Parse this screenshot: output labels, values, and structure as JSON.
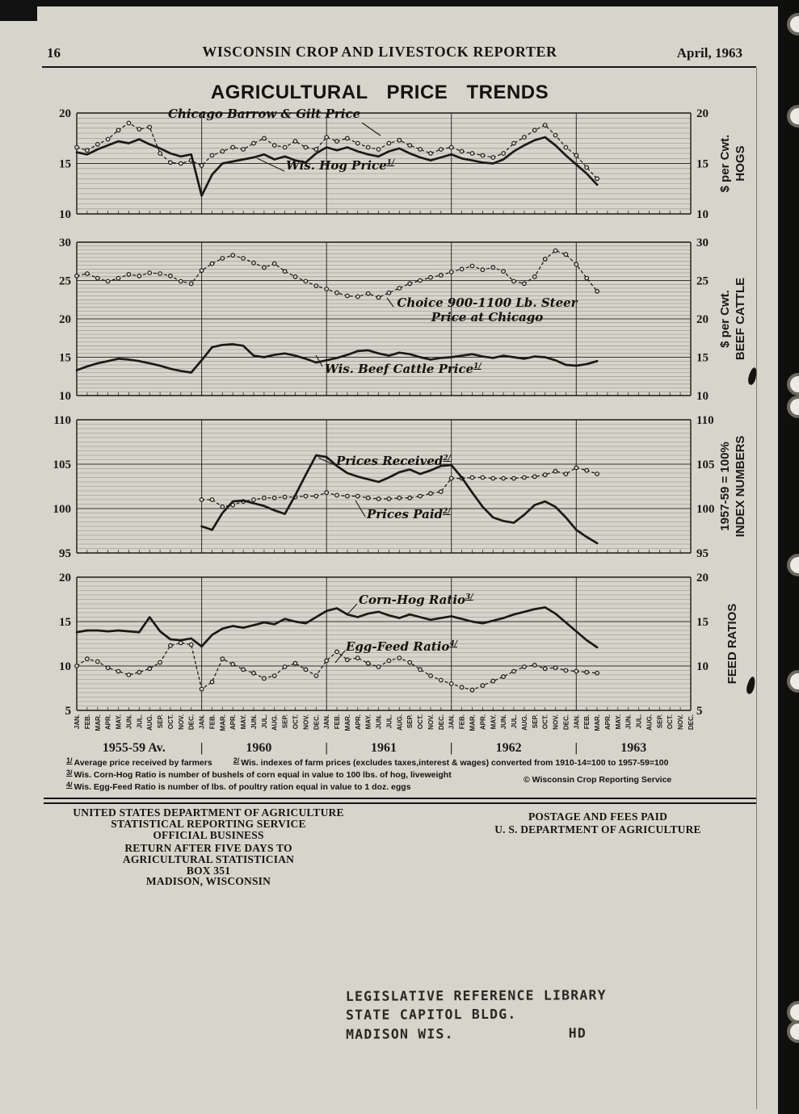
{
  "page": {
    "page_number": "16",
    "header_title": "WISCONSIN CROP AND LIVESTOCK REPORTER",
    "header_date": "April, 1963"
  },
  "chart": {
    "title": "AGRICULTURAL PRICE TRENDS",
    "months": [
      "JAN.",
      "FEB.",
      "MAR.",
      "APR.",
      "MAY.",
      "JUN.",
      "JUL.",
      "AUG.",
      "SEP.",
      "OCT.",
      "NOV.",
      "DEC."
    ],
    "groups": [
      "1955-59 Av.",
      "1960",
      "1961",
      "1962",
      "1963"
    ],
    "group_separator": "|"
  },
  "annotations": {
    "chicago": "Chicago Barrow & Gilt Price",
    "wis_hog": "Wis. Hog Price",
    "wis_hog_sup": "1/",
    "choice_line1": "Choice 900-1100 Lb. Steer",
    "choice_line2": "Price at Chicago",
    "wis_beef": "Wis. Beef Cattle Price",
    "wis_beef_sup": "1/",
    "received": "Prices Received",
    "received_sup": "2/",
    "paid": "Prices Paid",
    "paid_sup": "2/",
    "corn_hog": "Corn-Hog Ratio",
    "corn_hog_sup": "3/",
    "egg_feed": "Egg-Feed Ratio",
    "egg_feed_sup": "4/"
  },
  "chart_data": [
    {
      "id": "hogs",
      "type": "line",
      "ylim": [
        10,
        20
      ],
      "yticks": [
        10,
        15,
        20
      ],
      "axis_title": [
        "HOGS",
        "$ per Cwt."
      ],
      "series": [
        {
          "name": "Chicago Barrow & Gilt Price",
          "style": "dotted-circles",
          "values": [
            16.6,
            16.3,
            16.9,
            17.4,
            18.3,
            19.0,
            18.4,
            18.6,
            16.0,
            15.1,
            15.0,
            15.3,
            14.8,
            15.8,
            16.2,
            16.6,
            16.4,
            17.0,
            17.5,
            16.8,
            16.6,
            17.2,
            16.6,
            16.4,
            17.6,
            17.2,
            17.5,
            17.0,
            16.6,
            16.4,
            17.0,
            17.3,
            16.8,
            16.4,
            16.0,
            16.4,
            16.6,
            16.2,
            16.0,
            15.8,
            15.6,
            16.0,
            17.0,
            17.6,
            18.3,
            18.8,
            17.8,
            16.6,
            15.8,
            14.6,
            13.5,
            null,
            null,
            null,
            null,
            null,
            null,
            null,
            null,
            null
          ]
        },
        {
          "name": "Wis. Hog Price",
          "style": "solid",
          "values": [
            16.1,
            15.9,
            16.4,
            16.8,
            17.2,
            17.0,
            17.4,
            16.9,
            16.5,
            16.0,
            15.7,
            15.9,
            11.8,
            13.9,
            15.0,
            15.2,
            15.4,
            15.6,
            15.9,
            15.4,
            15.7,
            15.3,
            15.1,
            16.0,
            16.6,
            16.3,
            16.6,
            16.2,
            15.9,
            15.7,
            16.2,
            16.5,
            16.0,
            15.6,
            15.3,
            15.6,
            15.9,
            15.5,
            15.3,
            15.1,
            15.0,
            15.4,
            16.2,
            16.8,
            17.3,
            17.6,
            16.8,
            15.8,
            14.9,
            14.0,
            12.9,
            null,
            null,
            null,
            null,
            null,
            null,
            null,
            null,
            null
          ]
        }
      ]
    },
    {
      "id": "beef_cattle",
      "type": "line",
      "ylim": [
        10,
        30
      ],
      "yticks": [
        10,
        15,
        20,
        25,
        30
      ],
      "axis_title": [
        "BEEF CATTLE",
        "$ per Cwt."
      ],
      "series": [
        {
          "name": "Choice 900-1100 Lb. Steer Price at Chicago",
          "style": "dotted-circles",
          "values": [
            25.6,
            25.9,
            25.3,
            24.9,
            25.3,
            25.8,
            25.6,
            26.0,
            25.9,
            25.6,
            24.9,
            24.6,
            26.3,
            27.2,
            27.9,
            28.3,
            27.9,
            27.3,
            26.7,
            27.2,
            26.2,
            25.5,
            24.9,
            24.3,
            23.9,
            23.4,
            23.0,
            22.9,
            23.3,
            22.8,
            23.4,
            24.0,
            24.6,
            25.0,
            25.4,
            25.7,
            26.1,
            26.5,
            26.9,
            26.4,
            26.7,
            26.2,
            24.9,
            24.6,
            25.5,
            27.8,
            28.9,
            28.4,
            27.1,
            25.3,
            23.6,
            null,
            null,
            null,
            null,
            null,
            null,
            null,
            null,
            null
          ]
        },
        {
          "name": "Wis. Beef Cattle Price",
          "style": "solid",
          "values": [
            13.3,
            13.8,
            14.2,
            14.5,
            14.8,
            14.7,
            14.5,
            14.2,
            13.9,
            13.5,
            13.2,
            13.0,
            14.6,
            16.3,
            16.6,
            16.7,
            16.5,
            15.2,
            15.0,
            15.3,
            15.5,
            15.2,
            14.8,
            14.3,
            14.6,
            14.9,
            15.3,
            15.8,
            15.9,
            15.5,
            15.2,
            15.6,
            15.4,
            15.0,
            14.7,
            14.9,
            15.0,
            15.2,
            15.4,
            15.1,
            14.9,
            15.2,
            15.0,
            14.8,
            15.1,
            15.0,
            14.6,
            14.0,
            13.9,
            14.1,
            14.5,
            null,
            null,
            null,
            null,
            null,
            null,
            null,
            null,
            null
          ]
        }
      ]
    },
    {
      "id": "index_numbers",
      "type": "line",
      "ylim": [
        95,
        110
      ],
      "yticks": [
        95,
        100,
        105,
        110
      ],
      "axis_title": [
        "INDEX NUMBERS",
        "1957-59 = 100%"
      ],
      "series": [
        {
          "name": "Prices Paid",
          "style": "dotted-circles",
          "values": [
            null,
            null,
            null,
            null,
            null,
            null,
            null,
            null,
            null,
            null,
            null,
            null,
            101.0,
            101.0,
            100.2,
            100.4,
            100.8,
            101.0,
            101.2,
            101.2,
            101.3,
            101.3,
            101.4,
            101.4,
            101.8,
            101.5,
            101.4,
            101.4,
            101.2,
            101.1,
            101.1,
            101.2,
            101.2,
            101.4,
            101.7,
            101.9,
            103.4,
            103.4,
            103.5,
            103.5,
            103.4,
            103.4,
            103.4,
            103.5,
            103.6,
            103.8,
            104.2,
            103.9,
            104.6,
            104.3,
            103.9,
            null,
            null,
            null,
            null,
            null,
            null,
            null,
            null,
            null
          ]
        },
        {
          "name": "Prices Received",
          "style": "solid",
          "values": [
            null,
            null,
            null,
            null,
            null,
            null,
            null,
            null,
            null,
            null,
            null,
            null,
            98.0,
            97.6,
            99.5,
            100.8,
            100.9,
            100.6,
            100.3,
            99.8,
            99.4,
            101.5,
            103.8,
            106.0,
            105.8,
            104.8,
            104.0,
            103.6,
            103.3,
            103.0,
            103.5,
            104.1,
            104.4,
            103.9,
            104.3,
            104.8,
            104.9,
            103.5,
            101.8,
            100.2,
            99.0,
            98.6,
            98.4,
            99.3,
            100.4,
            100.8,
            100.2,
            99.0,
            97.6,
            96.8,
            96.1,
            null,
            null,
            null,
            null,
            null,
            null,
            null,
            null,
            null
          ]
        }
      ]
    },
    {
      "id": "feed_ratios",
      "type": "line",
      "ylim": [
        5,
        20
      ],
      "yticks": [
        5,
        10,
        15,
        20
      ],
      "axis_title": [
        "FEED RATIOS"
      ],
      "series": [
        {
          "name": "Egg-Feed Ratio",
          "style": "dotted-circles",
          "values": [
            10.0,
            10.8,
            10.5,
            9.8,
            9.4,
            9.0,
            9.3,
            9.7,
            10.4,
            12.3,
            12.6,
            12.4,
            7.4,
            8.2,
            10.8,
            10.2,
            9.6,
            9.2,
            8.6,
            8.9,
            9.9,
            10.3,
            9.6,
            8.9,
            10.6,
            11.6,
            10.7,
            10.9,
            10.3,
            9.9,
            10.6,
            10.9,
            10.4,
            9.6,
            8.9,
            8.4,
            8.0,
            7.6,
            7.3,
            7.8,
            8.3,
            8.8,
            9.4,
            9.9,
            10.1,
            9.7,
            9.8,
            9.5,
            9.4,
            9.3,
            9.2,
            null,
            null,
            null,
            null,
            null,
            null,
            null,
            null,
            null
          ]
        },
        {
          "name": "Corn-Hog Ratio",
          "style": "solid",
          "values": [
            13.8,
            14.0,
            14.0,
            13.9,
            14.0,
            13.9,
            13.8,
            15.5,
            13.9,
            13.0,
            12.9,
            13.1,
            12.2,
            13.5,
            14.2,
            14.5,
            14.3,
            14.6,
            14.9,
            14.7,
            15.3,
            15.0,
            14.8,
            15.5,
            16.2,
            16.5,
            15.8,
            15.5,
            15.9,
            16.1,
            15.7,
            15.4,
            15.8,
            15.5,
            15.2,
            15.4,
            15.6,
            15.3,
            15.0,
            14.8,
            15.1,
            15.4,
            15.8,
            16.1,
            16.4,
            16.6,
            15.9,
            14.9,
            13.9,
            12.9,
            12.1,
            null,
            null,
            null,
            null,
            null,
            null,
            null,
            null,
            null
          ]
        }
      ]
    }
  ],
  "footnotes": [
    {
      "marker": "1/",
      "text": "Average price received by farmers"
    },
    {
      "marker": "2/",
      "text": "Wis. indexes of farm prices (excludes taxes,interest & wages) converted from 1910-14=100 to 1957-59=100"
    },
    {
      "marker": "3/",
      "text": "Wis. Corn-Hog Ratio is number of bushels of corn equal in value to 100 lbs. of hog, liveweight"
    },
    {
      "marker": "4/",
      "text": "Wis. Egg-Feed Ratio is number of lbs. of poultry ration equal in value to 1 doz. eggs"
    }
  ],
  "copyright": "© Wisconsin Crop Reporting Service",
  "mailer": {
    "usda_lines": [
      "UNITED STATES DEPARTMENT OF AGRICULTURE",
      "STATISTICAL REPORTING SERVICE",
      "OFFICIAL BUSINESS"
    ],
    "return_lines": [
      "RETURN AFTER FIVE DAYS TO",
      "AGRICULTURAL STATISTICIAN",
      "BOX 351",
      "MADISON, WISCONSIN"
    ],
    "postage_lines": [
      "POSTAGE AND FEES PAID",
      "U. S. DEPARTMENT OF AGRICULTURE"
    ]
  },
  "stamp": {
    "lines": [
      "LEGISLATIVE REFERENCE LIBRARY",
      "STATE CAPITOL BLDG.",
      "MADISON WIS."
    ],
    "right": "HD"
  }
}
